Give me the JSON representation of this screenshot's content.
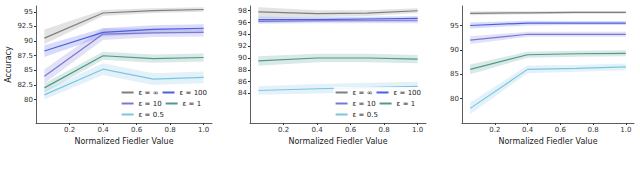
{
  "chart_data": [
    {
      "type": "line",
      "x_label": "Normalized Fiedler Value",
      "y_label": "Accuracy",
      "x": [
        0.05,
        0.4,
        0.7,
        1.0
      ],
      "xlim": [
        0,
        1.05
      ],
      "xticks": [
        0.2,
        0.4,
        0.6,
        0.8,
        {
          "value": 1.0,
          "label": "1.0"
        }
      ],
      "ylim": [
        76,
        96
      ],
      "yticks": [
        80,
        82.5,
        85,
        87.5,
        90,
        92.5,
        95
      ],
      "grid": false,
      "legend": "lower right",
      "series": [
        {
          "name": "ε = ∞",
          "color": "#7f7f7f",
          "values": [
            90.5,
            94.8,
            95.2,
            95.4
          ],
          "lower": [
            89.5,
            94.3,
            94.8,
            95.0
          ],
          "upper": [
            92.0,
            95.3,
            95.6,
            95.8
          ]
        },
        {
          "name": "ε = 100",
          "color": "#4c5fe0",
          "values": [
            88.3,
            91.5,
            92.0,
            92.2
          ],
          "lower": [
            87.3,
            90.8,
            91.3,
            91.5
          ],
          "upper": [
            89.3,
            92.2,
            92.7,
            92.9
          ]
        },
        {
          "name": "ε = 10",
          "color": "#7a78d6",
          "values": [
            84.0,
            91.2,
            91.4,
            91.5
          ],
          "lower": [
            82.8,
            90.2,
            90.7,
            90.8
          ],
          "upper": [
            85.2,
            92.2,
            92.1,
            92.2
          ]
        },
        {
          "name": "ε = 1",
          "color": "#4f9a8d",
          "values": [
            82.0,
            87.5,
            87.0,
            87.2
          ],
          "lower": [
            81.2,
            86.8,
            86.3,
            86.5
          ],
          "upper": [
            82.8,
            88.2,
            87.7,
            87.9
          ]
        },
        {
          "name": "ε = 0.5",
          "color": "#7ec4e2",
          "values": [
            80.8,
            85.2,
            83.5,
            83.8
          ],
          "lower": [
            80.0,
            84.2,
            82.5,
            82.8
          ],
          "upper": [
            81.6,
            86.2,
            84.5,
            84.8
          ]
        }
      ]
    },
    {
      "type": "line",
      "x_label": "Normalized Fiedler Value",
      "x": [
        0.05,
        0.4,
        0.7,
        1.0
      ],
      "xlim": [
        0,
        1.05
      ],
      "xticks": [
        0.2,
        0.4,
        0.6,
        0.8,
        {
          "value": 1.0,
          "label": "1.0"
        }
      ],
      "ylim": [
        79,
        98.8
      ],
      "yticks": [
        84,
        86,
        88,
        90,
        92,
        94,
        96,
        98
      ],
      "grid": false,
      "legend": "lower right",
      "series": [
        {
          "name": "ε = ∞",
          "color": "#7f7f7f",
          "values": [
            97.8,
            97.5,
            97.6,
            98.0
          ],
          "lower": [
            96.8,
            96.9,
            97.1,
            97.6
          ],
          "upper": [
            98.6,
            98.1,
            98.1,
            98.4
          ]
        },
        {
          "name": "ε = 100",
          "color": "#4c5fe0",
          "values": [
            96.5,
            96.5,
            96.6,
            96.7
          ],
          "lower": [
            96.0,
            96.1,
            96.2,
            96.3
          ],
          "upper": [
            97.0,
            96.9,
            97.0,
            97.1
          ]
        },
        {
          "name": "ε = 10",
          "color": "#7a78d6",
          "values": [
            96.2,
            96.3,
            96.3,
            96.3
          ],
          "lower": [
            95.8,
            95.9,
            95.9,
            95.9
          ],
          "upper": [
            96.6,
            96.7,
            96.7,
            96.7
          ]
        },
        {
          "name": "ε = 1",
          "color": "#4f9a8d",
          "values": [
            89.5,
            90.0,
            90.0,
            89.8
          ],
          "lower": [
            88.7,
            89.3,
            89.3,
            89.1
          ],
          "upper": [
            90.3,
            90.7,
            90.7,
            90.5
          ]
        },
        {
          "name": "ε = 0.5",
          "color": "#7ec4e2",
          "values": [
            84.5,
            84.8,
            85.0,
            85.2
          ],
          "lower": [
            83.8,
            84.0,
            84.2,
            84.4
          ],
          "upper": [
            85.2,
            85.6,
            85.8,
            86.0
          ]
        }
      ]
    },
    {
      "type": "line",
      "x_label": "Normalized Fiedler Value",
      "x": [
        0.05,
        0.4,
        0.7,
        1.0
      ],
      "xlim": [
        0,
        1.05
      ],
      "xticks": [
        0.2,
        0.4,
        0.6,
        0.8,
        {
          "value": 1.0,
          "label": "1.0"
        }
      ],
      "ylim": [
        75,
        99
      ],
      "yticks": [
        80,
        85,
        90,
        95
      ],
      "grid": false,
      "series": [
        {
          "name": "ε = ∞",
          "color": "#7f7f7f",
          "values": [
            97.5,
            97.6,
            97.7,
            97.7
          ],
          "lower": [
            97.1,
            97.3,
            97.4,
            97.4
          ],
          "upper": [
            97.9,
            97.9,
            98.0,
            98.0
          ]
        },
        {
          "name": "ε = 100",
          "color": "#4c5fe0",
          "values": [
            95.0,
            95.5,
            95.5,
            95.5
          ],
          "lower": [
            94.4,
            95.0,
            95.1,
            95.1
          ],
          "upper": [
            95.6,
            96.0,
            95.9,
            95.9
          ]
        },
        {
          "name": "ε = 10",
          "color": "#7a78d6",
          "values": [
            92.0,
            93.2,
            93.2,
            93.2
          ],
          "lower": [
            91.2,
            92.7,
            92.7,
            92.7
          ],
          "upper": [
            92.8,
            93.7,
            93.7,
            93.7
          ]
        },
        {
          "name": "ε = 1",
          "color": "#4f9a8d",
          "values": [
            86.0,
            89.0,
            89.2,
            89.3
          ],
          "lower": [
            85.0,
            88.4,
            88.6,
            88.7
          ],
          "upper": [
            87.0,
            89.6,
            89.8,
            89.9
          ]
        },
        {
          "name": "ε = 0.5",
          "color": "#7ec4e2",
          "values": [
            78.0,
            86.0,
            86.2,
            86.5
          ],
          "lower": [
            76.8,
            85.2,
            85.5,
            85.8
          ],
          "upper": [
            79.2,
            86.8,
            86.9,
            87.2
          ]
        }
      ]
    }
  ]
}
